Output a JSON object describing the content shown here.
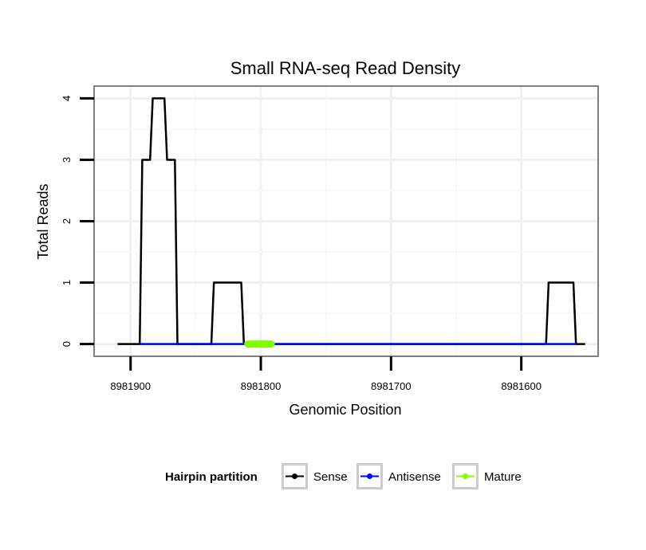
{
  "chart_data": {
    "type": "line",
    "title": "Small RNA-seq Read Density",
    "xlabel": "Genomic Position",
    "ylabel": "Total Reads",
    "x_reversed": true,
    "xlim": [
      8981928,
      8981541
    ],
    "ylim": [
      -0.2,
      4.2
    ],
    "x_ticks": [
      8981900,
      8981800,
      8981700,
      8981600
    ],
    "x_tick_labels": [
      "8981900",
      "8981800",
      "8981700",
      "8981600"
    ],
    "y_ticks": [
      0,
      1,
      2,
      3,
      4
    ],
    "y_tick_labels": [
      "0",
      "1",
      "2",
      "3",
      "4"
    ],
    "grid": true,
    "series": [
      {
        "name": "Sense",
        "color": "#000000",
        "x": [
          8981910,
          8981893,
          8981891,
          8981885,
          8981883,
          8981874,
          8981872,
          8981866,
          8981864,
          8981838,
          8981836,
          8981815,
          8981813,
          8981581,
          8981579,
          8981560,
          8981558,
          8981551
        ],
        "y": [
          0,
          0,
          3,
          3,
          4,
          4,
          3,
          3,
          0,
          0,
          1,
          1,
          0,
          0,
          1,
          1,
          0,
          0
        ]
      },
      {
        "name": "Antisense",
        "color": "#0000ff",
        "x": [
          8981893,
          8981813,
          8981581,
          8981558
        ],
        "y": [
          0,
          0,
          0,
          0
        ]
      },
      {
        "name": "Mature",
        "color": "#80ff00",
        "x": [
          8981810,
          8981792
        ],
        "y": [
          0,
          0
        ]
      }
    ],
    "legend": {
      "title": "Hairpin partition",
      "position": "bottom",
      "entries": [
        "Sense",
        "Antisense",
        "Mature"
      ]
    }
  }
}
